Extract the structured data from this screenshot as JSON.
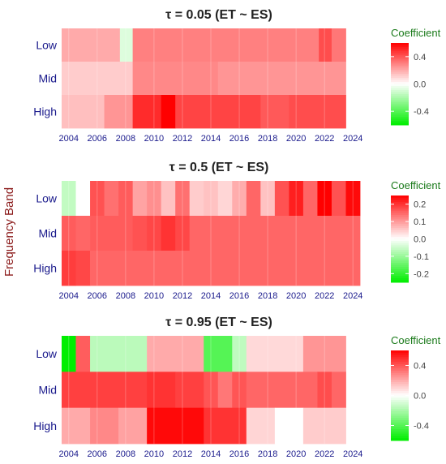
{
  "figure": {
    "y_axis_title": "Frequency Band",
    "legend_title": "Coefficient"
  },
  "chart_data": [
    {
      "type": "heatmap",
      "title": "τ = 0.05  (ET ~ ES)",
      "rows": [
        "Low",
        "Mid",
        "High"
      ],
      "x_ticks": [
        2004,
        2006,
        2008,
        2010,
        2012,
        2014,
        2016,
        2018,
        2020,
        2022,
        2024
      ],
      "x_range": [
        2003.5,
        2024.5
      ],
      "color_limits": [
        -0.6,
        0.6
      ],
      "legend_ticks": [
        0.4,
        0.0,
        -0.4
      ],
      "cells": [
        {
          "row": "Low",
          "x0": 2003.5,
          "x1": 2007.6,
          "value": 0.2
        },
        {
          "row": "Low",
          "x0": 2007.6,
          "x1": 2008.5,
          "value": -0.08
        },
        {
          "row": "Low",
          "x0": 2008.5,
          "x1": 2021.6,
          "value": 0.3
        },
        {
          "row": "Low",
          "x0": 2021.6,
          "x1": 2022.5,
          "value": 0.42
        },
        {
          "row": "Low",
          "x0": 2022.5,
          "x1": 2023.5,
          "value": 0.32
        },
        {
          "row": "Mid",
          "x0": 2003.5,
          "x1": 2008.5,
          "value": 0.12
        },
        {
          "row": "Mid",
          "x0": 2008.5,
          "x1": 2014.5,
          "value": 0.28
        },
        {
          "row": "Mid",
          "x0": 2014.5,
          "x1": 2023.5,
          "value": 0.25
        },
        {
          "row": "High",
          "x0": 2003.5,
          "x1": 2006.5,
          "value": 0.15
        },
        {
          "row": "High",
          "x0": 2006.5,
          "x1": 2008.5,
          "value": 0.25
        },
        {
          "row": "High",
          "x0": 2008.5,
          "x1": 2010.5,
          "value": 0.5
        },
        {
          "row": "High",
          "x0": 2010.5,
          "x1": 2011.5,
          "value": 0.6
        },
        {
          "row": "High",
          "x0": 2011.5,
          "x1": 2017.5,
          "value": 0.44
        },
        {
          "row": "High",
          "x0": 2017.5,
          "x1": 2019.5,
          "value": 0.39
        },
        {
          "row": "High",
          "x0": 2019.5,
          "x1": 2023.5,
          "value": 0.42
        }
      ]
    },
    {
      "type": "heatmap",
      "title": "τ = 0.5  (ET ~ ES)",
      "rows": [
        "Low",
        "Mid",
        "High"
      ],
      "x_ticks": [
        2004,
        2006,
        2008,
        2010,
        2012,
        2014,
        2016,
        2018,
        2020,
        2022,
        2024
      ],
      "x_range": [
        2003.5,
        2024.5
      ],
      "color_limits": [
        -0.25,
        0.25
      ],
      "legend_ticks": [
        0.2,
        0.1,
        0.0,
        -0.1,
        -0.2
      ],
      "cells": [
        {
          "row": "Low",
          "x0": 2003.5,
          "x1": 2004.5,
          "value": -0.06
        },
        {
          "row": "Low",
          "x0": 2004.5,
          "x1": 2005.5,
          "value": 0.0
        },
        {
          "row": "Low",
          "x0": 2005.5,
          "x1": 2006.5,
          "value": 0.17
        },
        {
          "row": "Low",
          "x0": 2006.5,
          "x1": 2007.5,
          "value": 0.14
        },
        {
          "row": "Low",
          "x0": 2007.5,
          "x1": 2008.5,
          "value": 0.16
        },
        {
          "row": "Low",
          "x0": 2008.5,
          "x1": 2009.5,
          "value": 0.09
        },
        {
          "row": "Low",
          "x0": 2009.5,
          "x1": 2010.5,
          "value": 0.11
        },
        {
          "row": "Low",
          "x0": 2010.5,
          "x1": 2011.5,
          "value": 0.06
        },
        {
          "row": "Low",
          "x0": 2011.5,
          "x1": 2012.5,
          "value": 0.14
        },
        {
          "row": "Low",
          "x0": 2012.5,
          "x1": 2013.5,
          "value": 0.05
        },
        {
          "row": "Low",
          "x0": 2013.5,
          "x1": 2014.5,
          "value": 0.06
        },
        {
          "row": "Low",
          "x0": 2014.5,
          "x1": 2015.5,
          "value": 0.04
        },
        {
          "row": "Low",
          "x0": 2015.5,
          "x1": 2016.5,
          "value": 0.08
        },
        {
          "row": "Low",
          "x0": 2016.5,
          "x1": 2017.5,
          "value": 0.15
        },
        {
          "row": "Low",
          "x0": 2017.5,
          "x1": 2018.5,
          "value": 0.06
        },
        {
          "row": "Low",
          "x0": 2018.5,
          "x1": 2019.5,
          "value": 0.17
        },
        {
          "row": "Low",
          "x0": 2019.5,
          "x1": 2020.5,
          "value": 0.22
        },
        {
          "row": "Low",
          "x0": 2020.5,
          "x1": 2021.5,
          "value": 0.15
        },
        {
          "row": "Low",
          "x0": 2021.5,
          "x1": 2022.5,
          "value": 0.25
        },
        {
          "row": "Low",
          "x0": 2022.5,
          "x1": 2023.5,
          "value": 0.17
        },
        {
          "row": "Low",
          "x0": 2023.5,
          "x1": 2024.5,
          "value": 0.24
        },
        {
          "row": "Mid",
          "x0": 2003.5,
          "x1": 2004.5,
          "value": 0.16
        },
        {
          "row": "Mid",
          "x0": 2004.5,
          "x1": 2005.5,
          "value": 0.15
        },
        {
          "row": "Mid",
          "x0": 2005.5,
          "x1": 2008.5,
          "value": 0.16
        },
        {
          "row": "Mid",
          "x0": 2008.5,
          "x1": 2009.5,
          "value": 0.17
        },
        {
          "row": "Mid",
          "x0": 2009.5,
          "x1": 2010.5,
          "value": 0.18
        },
        {
          "row": "Mid",
          "x0": 2010.5,
          "x1": 2011.5,
          "value": 0.2
        },
        {
          "row": "Mid",
          "x0": 2011.5,
          "x1": 2012.5,
          "value": 0.18
        },
        {
          "row": "Mid",
          "x0": 2012.5,
          "x1": 2024.5,
          "value": 0.15
        },
        {
          "row": "High",
          "x0": 2003.5,
          "x1": 2004.5,
          "value": 0.19
        },
        {
          "row": "High",
          "x0": 2004.5,
          "x1": 2005.5,
          "value": 0.18
        },
        {
          "row": "High",
          "x0": 2005.5,
          "x1": 2024.5,
          "value": 0.15
        }
      ]
    },
    {
      "type": "heatmap",
      "title": "τ = 0.95  (ET ~ ES)",
      "rows": [
        "Low",
        "Mid",
        "High"
      ],
      "x_ticks": [
        2004,
        2006,
        2008,
        2010,
        2012,
        2014,
        2016,
        2018,
        2020,
        2022,
        2024
      ],
      "x_range": [
        2003.5,
        2024.5
      ],
      "color_limits": [
        -0.6,
        0.6
      ],
      "legend_ticks": [
        0.4,
        0.0,
        -0.4
      ],
      "cells": [
        {
          "row": "Low",
          "x0": 2003.5,
          "x1": 2004.5,
          "value": -0.6
        },
        {
          "row": "Low",
          "x0": 2004.5,
          "x1": 2005.5,
          "value": 0.38
        },
        {
          "row": "Low",
          "x0": 2005.5,
          "x1": 2009.5,
          "value": -0.16
        },
        {
          "row": "Low",
          "x0": 2009.5,
          "x1": 2013.5,
          "value": 0.2
        },
        {
          "row": "Low",
          "x0": 2013.5,
          "x1": 2015.5,
          "value": -0.4
        },
        {
          "row": "Low",
          "x0": 2015.5,
          "x1": 2016.5,
          "value": -0.15
        },
        {
          "row": "Low",
          "x0": 2016.5,
          "x1": 2020.5,
          "value": 0.09
        },
        {
          "row": "Low",
          "x0": 2020.5,
          "x1": 2023.5,
          "value": 0.25
        },
        {
          "row": "Mid",
          "x0": 2003.5,
          "x1": 2009.5,
          "value": 0.45
        },
        {
          "row": "Mid",
          "x0": 2009.5,
          "x1": 2011.5,
          "value": 0.48
        },
        {
          "row": "Mid",
          "x0": 2011.5,
          "x1": 2013.5,
          "value": 0.45
        },
        {
          "row": "Mid",
          "x0": 2013.5,
          "x1": 2014.5,
          "value": 0.4
        },
        {
          "row": "Mid",
          "x0": 2014.5,
          "x1": 2015.5,
          "value": 0.32
        },
        {
          "row": "Mid",
          "x0": 2015.5,
          "x1": 2016.5,
          "value": 0.4
        },
        {
          "row": "Mid",
          "x0": 2016.5,
          "x1": 2021.5,
          "value": 0.36
        },
        {
          "row": "Mid",
          "x0": 2021.5,
          "x1": 2022.5,
          "value": 0.42
        },
        {
          "row": "Mid",
          "x0": 2022.5,
          "x1": 2023.5,
          "value": 0.36
        },
        {
          "row": "High",
          "x0": 2003.5,
          "x1": 2005.5,
          "value": 0.2
        },
        {
          "row": "High",
          "x0": 2005.5,
          "x1": 2007.5,
          "value": 0.28
        },
        {
          "row": "High",
          "x0": 2007.5,
          "x1": 2009.5,
          "value": 0.22
        },
        {
          "row": "High",
          "x0": 2009.5,
          "x1": 2013.5,
          "value": 0.58
        },
        {
          "row": "High",
          "x0": 2013.5,
          "x1": 2016.5,
          "value": 0.48
        },
        {
          "row": "High",
          "x0": 2016.5,
          "x1": 2018.5,
          "value": 0.1
        },
        {
          "row": "High",
          "x0": 2018.5,
          "x1": 2020.5,
          "value": 0.0
        },
        {
          "row": "High",
          "x0": 2020.5,
          "x1": 2023.5,
          "value": 0.12
        }
      ]
    }
  ]
}
